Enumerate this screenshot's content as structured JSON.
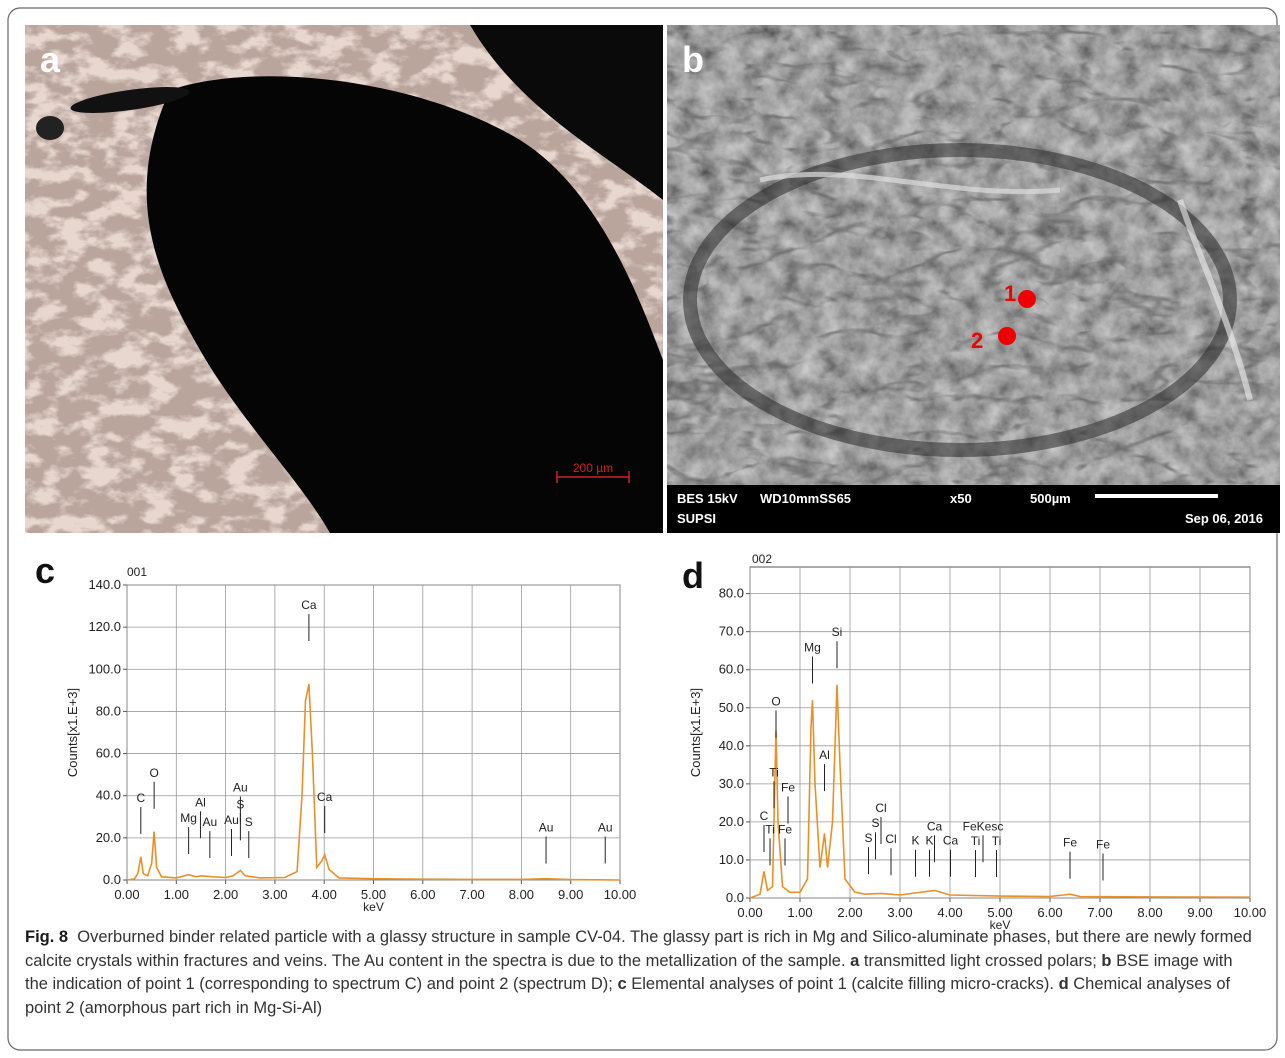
{
  "panels": {
    "a": {
      "letter": "a",
      "scale": "200 µm"
    },
    "b": {
      "letter": "b",
      "point1": "1",
      "point2": "2",
      "mode": "BES 15kV",
      "wd": "WD10mmSS65",
      "mag": "x50",
      "scale": "500µm",
      "lab": "SUPSI",
      "date": "Sep 06, 2016"
    }
  },
  "chart_data": [
    {
      "type": "line",
      "panel": "c",
      "title": "001",
      "xlabel": "keV",
      "ylabel": "Counts[x1.E+3]",
      "color": "#e8902a",
      "grid": true,
      "xlim": [
        0,
        10
      ],
      "ylim": [
        0,
        140
      ],
      "xticks": [
        {
          "value": 0,
          "label": "0.00"
        },
        {
          "value": 1,
          "label": "1.00"
        },
        {
          "value": 2,
          "label": "2.00"
        },
        {
          "value": 3,
          "label": "3.00"
        },
        {
          "value": 4,
          "label": "4.00"
        },
        {
          "value": 5,
          "label": "5.00"
        },
        {
          "value": 6,
          "label": "6.00"
        },
        {
          "value": 7,
          "label": "7.00"
        },
        {
          "value": 8,
          "label": "8.00"
        },
        {
          "value": 9,
          "label": "9.00"
        },
        {
          "value": 10,
          "label": "10.00"
        }
      ],
      "yticks": [
        {
          "value": 0,
          "label": "0.0"
        },
        {
          "value": 20,
          "label": "20.0"
        },
        {
          "value": 40,
          "label": "40.0"
        },
        {
          "value": 60,
          "label": "60.0"
        },
        {
          "value": 80,
          "label": "80.0"
        },
        {
          "value": 100,
          "label": "100.0"
        },
        {
          "value": 120,
          "label": "120.0"
        },
        {
          "value": 140,
          "label": "140.0"
        }
      ],
      "x": [
        0,
        0.15,
        0.22,
        0.28,
        0.33,
        0.42,
        0.5,
        0.55,
        0.6,
        0.7,
        1.0,
        1.25,
        1.4,
        1.5,
        1.75,
        2.0,
        2.15,
        2.3,
        2.4,
        2.7,
        3.2,
        3.45,
        3.55,
        3.62,
        3.69,
        3.76,
        3.85,
        3.95,
        4.01,
        4.1,
        4.3,
        5,
        6,
        7,
        8,
        8.5,
        9,
        10
      ],
      "values": [
        0,
        0.5,
        3,
        11,
        3,
        2,
        8,
        23,
        6,
        1.5,
        1,
        2.5,
        1.5,
        2,
        1.5,
        1.2,
        2,
        4.5,
        2,
        1,
        1.2,
        4,
        40,
        85,
        93,
        60,
        6,
        9,
        12,
        5,
        1,
        0.6,
        0.4,
        0.3,
        0.3,
        0.6,
        0.2,
        0
      ],
      "peaks": [
        {
          "label": "C",
          "x": 0.28,
          "y": 37
        },
        {
          "label": "O",
          "x": 0.55,
          "y": 49
        },
        {
          "label": "Mg",
          "x": 1.25,
          "y": 27.5
        },
        {
          "label": "Al",
          "x": 1.49,
          "y": 35
        },
        {
          "label": "Au",
          "x": 1.68,
          "y": 25.6
        },
        {
          "label": "Au",
          "x": 2.12,
          "y": 26.6
        },
        {
          "label": "Au",
          "x": 2.3,
          "y": 42
        },
        {
          "label": "S",
          "x": 2.3,
          "y": 34
        },
        {
          "label": "S",
          "x": 2.47,
          "y": 25.6
        },
        {
          "label": "Ca",
          "x": 3.69,
          "y": 128.6
        },
        {
          "label": "Ca",
          "x": 4.01,
          "y": 37.5
        },
        {
          "label": "Au",
          "x": 8.5,
          "y": 23
        },
        {
          "label": "Au",
          "x": 9.7,
          "y": 23
        }
      ]
    },
    {
      "type": "line",
      "panel": "d",
      "title": "002",
      "xlabel": "keV",
      "ylabel": "Counts[x1.E+3]",
      "color": "#e8902a",
      "grid": true,
      "xlim": [
        0,
        10
      ],
      "ylim": [
        0,
        87
      ],
      "xticks": [
        {
          "value": 0,
          "label": "0.00"
        },
        {
          "value": 1,
          "label": "1.00"
        },
        {
          "value": 2,
          "label": "2.00"
        },
        {
          "value": 3,
          "label": "3.00"
        },
        {
          "value": 4,
          "label": "4.00"
        },
        {
          "value": 5,
          "label": "5.00"
        },
        {
          "value": 6,
          "label": "6.00"
        },
        {
          "value": 7,
          "label": "7.00"
        },
        {
          "value": 8,
          "label": "8.00"
        },
        {
          "value": 9,
          "label": "9.00"
        },
        {
          "value": 10,
          "label": "10.00"
        }
      ],
      "yticks": [
        {
          "value": 0,
          "label": "0.0"
        },
        {
          "value": 10,
          "label": "10.0"
        },
        {
          "value": 20,
          "label": "20.0"
        },
        {
          "value": 30,
          "label": "30.0"
        },
        {
          "value": 40,
          "label": "40.0"
        },
        {
          "value": 50,
          "label": "50.0"
        },
        {
          "value": 60,
          "label": "60.0"
        },
        {
          "value": 70,
          "label": "70.0"
        },
        {
          "value": 80,
          "label": "80.0"
        }
      ],
      "x": [
        0,
        0.2,
        0.28,
        0.35,
        0.45,
        0.52,
        0.56,
        0.65,
        0.8,
        1.0,
        1.15,
        1.22,
        1.25,
        1.3,
        1.4,
        1.49,
        1.55,
        1.65,
        1.74,
        1.8,
        1.9,
        2.1,
        2.3,
        2.62,
        3.0,
        3.69,
        4.0,
        5,
        6,
        6.4,
        6.6,
        8,
        10
      ],
      "values": [
        0,
        1,
        7,
        2,
        3,
        44,
        20,
        3,
        1.5,
        1.5,
        5,
        45,
        52,
        30,
        8,
        17,
        8,
        20,
        56,
        35,
        5,
        1.5,
        1,
        1.2,
        0.8,
        2,
        0.8,
        0.5,
        0.4,
        1,
        0.4,
        0.3,
        0.2
      ],
      "peaks": [
        {
          "label": "C",
          "x": 0.28,
          "y": 20.5
        },
        {
          "label": "Ti",
          "x": 0.4,
          "y": 17
        },
        {
          "label": "Ti",
          "x": 0.48,
          "y": 32
        },
        {
          "label": "O",
          "x": 0.52,
          "y": 50.6
        },
        {
          "label": "Fe",
          "x": 0.7,
          "y": 17
        },
        {
          "label": "Fe",
          "x": 0.76,
          "y": 28
        },
        {
          "label": "Mg",
          "x": 1.25,
          "y": 64.8
        },
        {
          "label": "Al",
          "x": 1.49,
          "y": 36.5
        },
        {
          "label": "Si",
          "x": 1.74,
          "y": 68.8
        },
        {
          "label": "S",
          "x": 2.37,
          "y": 14.7
        },
        {
          "label": "S",
          "x": 2.51,
          "y": 18.6
        },
        {
          "label": "Cl",
          "x": 2.62,
          "y": 22.6
        },
        {
          "label": "Cl",
          "x": 2.82,
          "y": 14.4
        },
        {
          "label": "K",
          "x": 3.31,
          "y": 14
        },
        {
          "label": "K",
          "x": 3.59,
          "y": 14
        },
        {
          "label": "Ca",
          "x": 3.69,
          "y": 17.8
        },
        {
          "label": "Ca",
          "x": 4.01,
          "y": 14
        },
        {
          "label": "Ti",
          "x": 4.51,
          "y": 13.9
        },
        {
          "label": "FeKesc",
          "x": 4.66,
          "y": 17.8
        },
        {
          "label": "Ti",
          "x": 4.93,
          "y": 13.9
        },
        {
          "label": "Fe",
          "x": 6.4,
          "y": 13.5
        },
        {
          "label": "Fe",
          "x": 7.06,
          "y": 13
        }
      ]
    }
  ],
  "caption": {
    "label": "Fig. 8",
    "parts": [
      {
        "bold": false,
        "text": "  Overburned binder related particle with a glassy structure in sample CV-04. The glassy part is rich in Mg and Silico-aluminate phases, but there are newly formed calcite crystals within fractures and veins. The Au content in the spectra is due to the metallization of the sample. "
      },
      {
        "bold": true,
        "text": "a"
      },
      {
        "bold": false,
        "text": " transmitted light crossed polars; "
      },
      {
        "bold": true,
        "text": "b"
      },
      {
        "bold": false,
        "text": " BSE image with the indication of point 1 (corresponding to spectrum C) and point 2 (spectrum D); "
      },
      {
        "bold": true,
        "text": "c"
      },
      {
        "bold": false,
        "text": " Elemental analyses of point 1 (calcite filling micro-cracks). "
      },
      {
        "bold": true,
        "text": "d"
      },
      {
        "bold": false,
        "text": " Chemical analyses of point 2 (amorphous part rich in Mg-Si-Al)"
      }
    ]
  }
}
